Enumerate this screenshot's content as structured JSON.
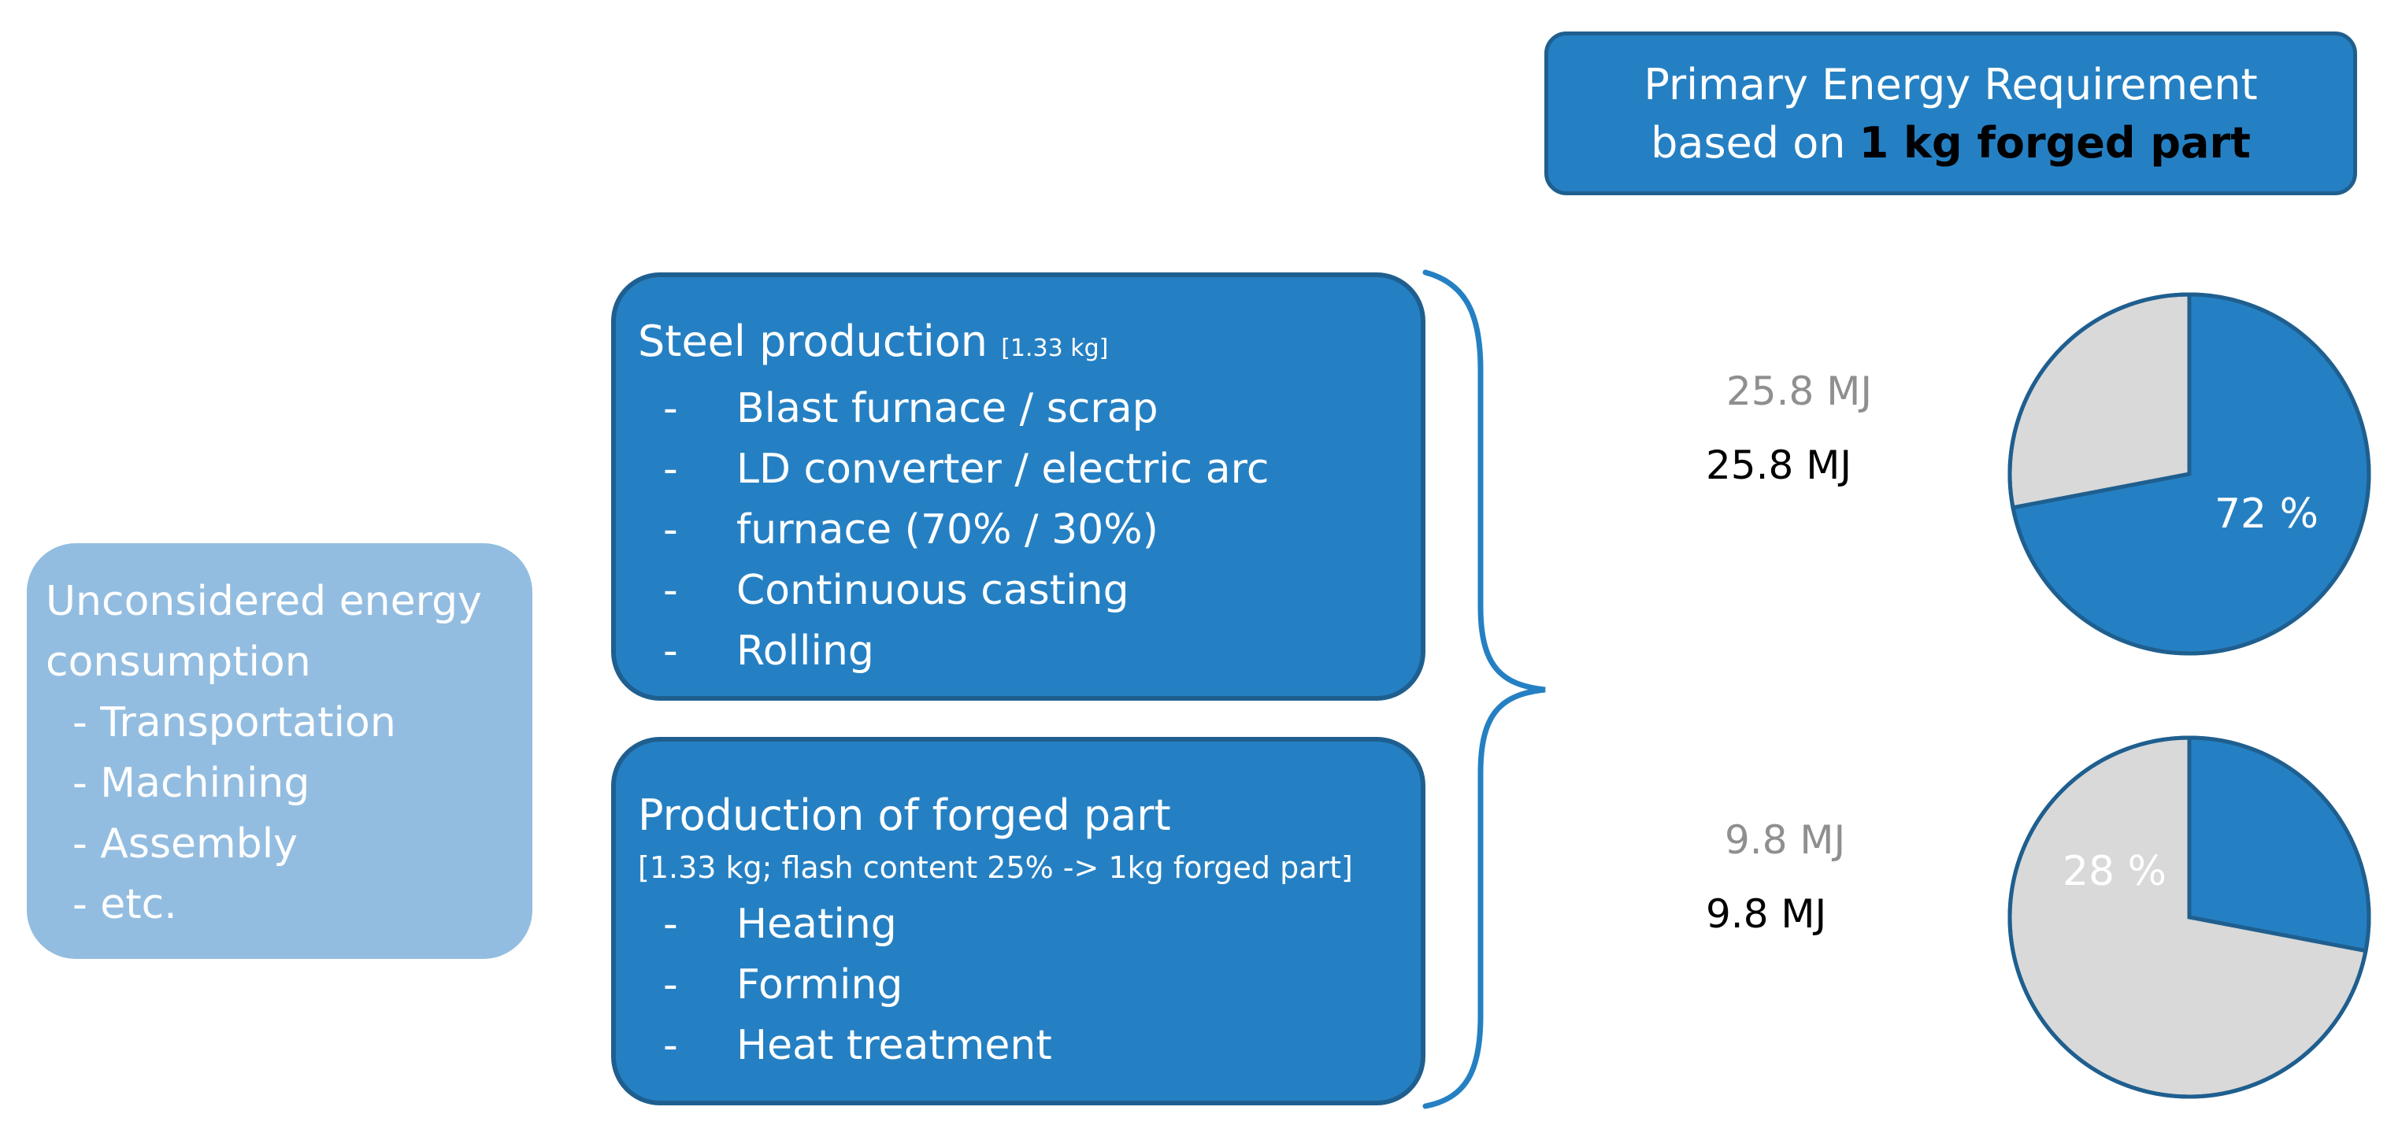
{
  "header": {
    "line1": "Primary Energy Requirement",
    "line2_prefix": "based on ",
    "line2_bold": "1 kg forged part"
  },
  "steel": {
    "title": "Steel production",
    "mass": "[1.33 kg]",
    "items": [
      "Blast furnace / scrap",
      "LD converter / electric arc",
      "furnace (70% / 30%)",
      "Continuous casting",
      "Rolling"
    ]
  },
  "forged": {
    "title": "Production of forged part",
    "note": "[1.33 kg; flash content 25% -> 1kg forged part]",
    "items": [
      "Heating",
      "Forming",
      "Heat treatment"
    ]
  },
  "unconsidered": {
    "title_line1": "Unconsidered energy",
    "title_line2": "consumption",
    "items": [
      "- Transportation",
      "- Machining",
      "- Assembly",
      "- etc."
    ]
  },
  "values": {
    "steel_grey": "25.8 MJ",
    "steel_black": "25.8 MJ",
    "forged_grey": "9.8 MJ",
    "forged_black": "9.8 MJ"
  },
  "colors": {
    "blue": "#2580c3",
    "border": "#1f5f8f",
    "grey": "#d9d9d9",
    "light_blue": "#93bde0"
  },
  "chart_data": [
    {
      "type": "pie",
      "values": [
        72,
        28
      ],
      "labels": [
        "72 %",
        ""
      ]
    },
    {
      "type": "pie",
      "values": [
        28,
        72
      ],
      "labels": [
        "28 %",
        ""
      ]
    }
  ]
}
